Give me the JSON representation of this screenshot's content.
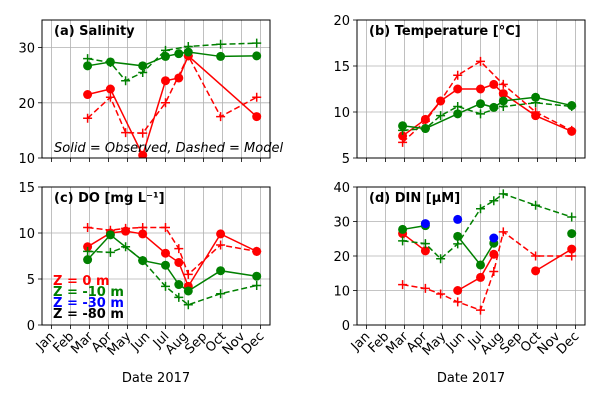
{
  "figure": {
    "xlabel": "Date 2017",
    "months": [
      "Jan",
      "Feb",
      "Mar",
      "Apr",
      "May",
      "Jun",
      "Jul",
      "Aug",
      "Sep",
      "Oct",
      "Nov",
      "Dec"
    ]
  },
  "colors": {
    "0 m": "#ff0000",
    "-10 m": "#008000",
    "-30 m": "#0000ff",
    "-80 m": "#000000"
  },
  "legend_note": "Solid = Observed, Dashed = Model",
  "depth_legend": [
    {
      "text": "Z =   0 m",
      "color": "#ff0000"
    },
    {
      "text": "Z =  -10 m",
      "color": "#008000"
    },
    {
      "text": "Z =  -30 m",
      "color": "#0000ff"
    },
    {
      "text": "Z =  -80 m",
      "color": "#000000"
    }
  ],
  "chart_data": [
    {
      "type": "line",
      "title": "(a) Salinity",
      "ylim": [
        10,
        35
      ],
      "yticks": [
        10,
        20,
        30
      ],
      "grid": true,
      "series": [
        {
          "depth": "0 m",
          "style": "observed",
          "x": [
            2.9,
            4.1,
            5.8,
            7.0,
            7.7,
            8.2,
            11.8
          ],
          "y": [
            21.5,
            22.5,
            10.5,
            24.0,
            24.5,
            28.5,
            17.5
          ]
        },
        {
          "depth": "0 m",
          "style": "model",
          "x": [
            2.9,
            4.1,
            4.9,
            5.8,
            7.0,
            8.2,
            9.9,
            11.8
          ],
          "y": [
            17.2,
            21.0,
            14.6,
            14.5,
            20.0,
            28.5,
            17.5,
            21.0
          ]
        },
        {
          "depth": "-10 m",
          "style": "observed",
          "x": [
            2.9,
            4.1,
            5.8,
            7.0,
            7.7,
            8.2,
            9.9,
            11.8
          ],
          "y": [
            26.7,
            27.4,
            26.7,
            28.4,
            28.9,
            29.2,
            28.4,
            28.5
          ]
        },
        {
          "depth": "-10 m",
          "style": "model",
          "x": [
            2.9,
            4.1,
            4.9,
            5.8,
            7.0,
            8.2,
            9.9,
            11.8
          ],
          "y": [
            28.0,
            27.3,
            24.0,
            25.5,
            29.5,
            30.2,
            30.6,
            30.8
          ]
        }
      ]
    },
    {
      "type": "line",
      "title": "(b) Temperature [°C]",
      "ylim": [
        5,
        20
      ],
      "yticks": [
        5,
        10,
        15,
        20
      ],
      "grid": true,
      "series": [
        {
          "depth": "0 m",
          "style": "observed",
          "x": [
            2.9,
            4.1,
            4.9,
            5.8,
            7.0,
            7.7,
            8.2,
            9.9,
            11.8
          ],
          "y": [
            7.4,
            9.2,
            11.2,
            12.5,
            12.5,
            13.0,
            12.0,
            9.6,
            7.9
          ]
        },
        {
          "depth": "0 m",
          "style": "model",
          "x": [
            2.9,
            4.1,
            4.9,
            5.8,
            7.0,
            8.2,
            9.9,
            11.8
          ],
          "y": [
            6.7,
            9.0,
            11.2,
            14.0,
            15.5,
            13.0,
            10.0,
            8.0
          ]
        },
        {
          "depth": "-10 m",
          "style": "observed",
          "x": [
            2.9,
            4.1,
            5.8,
            7.0,
            7.7,
            8.2,
            9.9,
            11.8
          ],
          "y": [
            8.5,
            8.2,
            9.8,
            10.9,
            10.5,
            11.2,
            11.6,
            10.7
          ]
        },
        {
          "depth": "-10 m",
          "style": "model",
          "x": [
            2.9,
            4.1,
            4.9,
            5.8,
            7.0,
            8.2,
            9.9,
            11.8
          ],
          "y": [
            8.0,
            8.2,
            9.6,
            10.6,
            9.8,
            10.6,
            11.0,
            10.6
          ]
        }
      ]
    },
    {
      "type": "line",
      "title": "(c) DO [mg L⁻¹]",
      "ylim": [
        0,
        15
      ],
      "yticks": [
        0,
        5,
        10,
        15
      ],
      "grid": true,
      "series": [
        {
          "depth": "0 m",
          "style": "observed",
          "x": [
            2.9,
            4.1,
            4.9,
            5.8,
            7.0,
            7.7,
            8.2,
            9.9,
            11.8
          ],
          "y": [
            8.5,
            10.0,
            10.2,
            9.9,
            7.8,
            6.8,
            4.2,
            9.9,
            8.0
          ]
        },
        {
          "depth": "0 m",
          "style": "model",
          "x": [
            2.9,
            4.1,
            4.9,
            5.8,
            7.0,
            7.7,
            8.2,
            9.9,
            11.8
          ],
          "y": [
            10.6,
            10.3,
            10.5,
            10.6,
            10.6,
            8.3,
            5.5,
            8.7,
            8.0
          ]
        },
        {
          "depth": "-10 m",
          "style": "observed",
          "x": [
            2.9,
            4.1,
            5.8,
            7.0,
            7.7,
            8.2,
            9.9,
            11.8
          ],
          "y": [
            7.1,
            9.8,
            7.0,
            6.5,
            4.4,
            3.7,
            5.9,
            5.3
          ]
        },
        {
          "depth": "-10 m",
          "style": "model",
          "x": [
            2.9,
            4.1,
            4.9,
            5.8,
            7.0,
            7.7,
            8.2,
            9.9,
            11.8
          ],
          "y": [
            8.0,
            7.9,
            8.5,
            7.0,
            4.2,
            3.0,
            2.2,
            3.4,
            4.3
          ]
        }
      ]
    },
    {
      "type": "line",
      "title": "(d) DIN [μM]",
      "ylim": [
        0,
        40
      ],
      "yticks": [
        0,
        10,
        20,
        30,
        40
      ],
      "grid": true,
      "series": [
        {
          "depth": "0 m",
          "style": "observed",
          "x": [
            2.9,
            4.1
          ],
          "y": [
            26.5,
            21.5
          ]
        },
        {
          "depth": "0 m",
          "style": "observed",
          "x": [
            5.8,
            7.0,
            7.7
          ],
          "y": [
            10.0,
            13.8,
            20.5
          ]
        },
        {
          "depth": "0 m",
          "style": "observed",
          "x": [
            9.9,
            11.8
          ],
          "y": [
            15.7,
            22.0
          ]
        },
        {
          "depth": "0 m",
          "style": "model",
          "x": [
            2.9,
            4.1,
            4.9,
            5.8,
            7.0,
            7.7,
            8.2,
            9.9,
            11.8
          ],
          "y": [
            11.7,
            10.6,
            9.0,
            6.7,
            4.3,
            15.5,
            27.0,
            20.0,
            20.0
          ]
        },
        {
          "depth": "-10 m",
          "style": "observed",
          "x": [
            2.9,
            4.1
          ],
          "y": [
            27.7,
            28.8
          ]
        },
        {
          "depth": "-10 m",
          "style": "observed",
          "x": [
            5.8,
            7.0,
            7.7
          ],
          "y": [
            25.7,
            17.4,
            23.7
          ]
        },
        {
          "depth": "-10 m",
          "style": "observed",
          "x": [
            11.8
          ],
          "y": [
            26.5
          ]
        },
        {
          "depth": "-10 m",
          "style": "model",
          "x": [
            2.9,
            4.1,
            4.9,
            5.8,
            7.0,
            7.7,
            8.2,
            9.9,
            11.8
          ],
          "y": [
            24.4,
            23.6,
            19.2,
            23.5,
            33.7,
            36.0,
            38.0,
            34.7,
            31.3
          ]
        },
        {
          "depth": "-30 m",
          "style": "observed",
          "x": [
            4.1
          ],
          "y": [
            29.4
          ]
        },
        {
          "depth": "-30 m",
          "style": "observed",
          "x": [
            5.8
          ],
          "y": [
            30.6
          ]
        },
        {
          "depth": "-30 m",
          "style": "observed",
          "x": [
            7.7
          ],
          "y": [
            25.2
          ]
        }
      ]
    }
  ]
}
